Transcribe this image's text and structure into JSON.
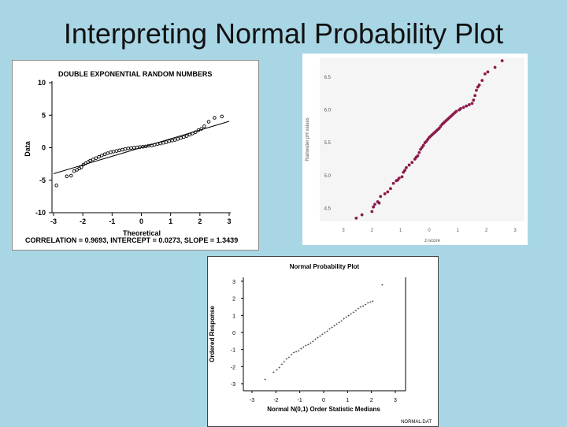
{
  "slide": {
    "title": "Interpreting Normal Probability Plot"
  },
  "chart_data": [
    {
      "type": "scatter",
      "title": "DOUBLE EXPONENTIAL RANDOM NUMBERS",
      "xlabel": "Theoretical",
      "ylabel": "Data",
      "xlim": [
        -3,
        3
      ],
      "ylim": [
        -10,
        10
      ],
      "xticks": [
        "-3",
        "-2",
        "-1",
        "0",
        "1",
        "2",
        "3"
      ],
      "yticks": [
        "10",
        "5",
        "0",
        "-5",
        "-10"
      ],
      "footer": "CORRELATION = 0.9693, INTERCEPT = 0.0273, SLOPE = 1.3439",
      "fit_line": {
        "intercept": 0.0273,
        "slope": 1.3439
      },
      "colors": {
        "marker": "#000000",
        "line": "#000000"
      },
      "x": [
        -2.9,
        -2.55,
        -2.4,
        -2.3,
        -2.2,
        -2.12,
        -2.05,
        -1.98,
        -1.9,
        -1.82,
        -1.75,
        -1.65,
        -1.55,
        -1.45,
        -1.35,
        -1.25,
        -1.15,
        -1.05,
        -0.95,
        -0.85,
        -0.75,
        -0.65,
        -0.55,
        -0.45,
        -0.35,
        -0.25,
        -0.15,
        -0.05,
        0.05,
        0.15,
        0.25,
        0.35,
        0.45,
        0.55,
        0.65,
        0.75,
        0.85,
        0.95,
        1.05,
        1.15,
        1.25,
        1.35,
        1.45,
        1.55,
        1.65,
        1.75,
        1.85,
        1.95,
        2.05,
        2.15,
        2.3,
        2.5,
        2.75
      ],
      "y": [
        -5.8,
        -4.4,
        -4.3,
        -3.6,
        -3.4,
        -3.2,
        -3.0,
        -2.6,
        -2.4,
        -2.2,
        -2.0,
        -1.8,
        -1.6,
        -1.4,
        -1.2,
        -1.0,
        -0.85,
        -0.7,
        -0.6,
        -0.5,
        -0.4,
        -0.3,
        -0.2,
        -0.1,
        -0.05,
        0.0,
        0.05,
        0.1,
        0.15,
        0.2,
        0.3,
        0.35,
        0.45,
        0.55,
        0.65,
        0.75,
        0.85,
        1.0,
        1.1,
        1.2,
        1.35,
        1.5,
        1.65,
        1.8,
        2.0,
        2.2,
        2.4,
        2.7,
        2.9,
        3.3,
        4.0,
        4.6,
        4.8
      ]
    },
    {
      "type": "scatter",
      "title": "",
      "xlabel": "z-score",
      "ylabel": "Rainwater pH values",
      "xlim": [
        -3,
        3
      ],
      "ylim": [
        4.3,
        6.8
      ],
      "xticks": [
        "3",
        "2",
        "1",
        "0",
        "1",
        "2",
        "3"
      ],
      "yticks": [
        "6.5",
        "6.0",
        "5.5",
        "5.0",
        "4.5"
      ],
      "colors": {
        "marker": "#8b1a4a",
        "plot_bg": "#f5f5f5"
      },
      "x": [
        -2.55,
        -2.35,
        -2.0,
        -1.95,
        -1.9,
        -1.8,
        -1.75,
        -1.7,
        -1.55,
        -1.45,
        -1.35,
        -1.25,
        -1.15,
        -1.1,
        -1.05,
        -0.95,
        -0.9,
        -0.85,
        -0.8,
        -0.7,
        -0.6,
        -0.5,
        -0.45,
        -0.4,
        -0.35,
        -0.3,
        -0.25,
        -0.2,
        -0.15,
        -0.1,
        -0.05,
        0.0,
        0.05,
        0.1,
        0.15,
        0.2,
        0.25,
        0.3,
        0.35,
        0.4,
        0.45,
        0.5,
        0.55,
        0.6,
        0.65,
        0.7,
        0.75,
        0.8,
        0.85,
        0.9,
        0.95,
        1.05,
        1.1,
        1.2,
        1.3,
        1.4,
        1.5,
        1.55,
        1.6,
        1.65,
        1.7,
        1.75,
        1.85,
        1.95,
        2.05,
        2.3,
        2.55
      ],
      "y": [
        4.35,
        4.4,
        4.45,
        4.52,
        4.56,
        4.6,
        4.58,
        4.68,
        4.72,
        4.75,
        4.8,
        4.88,
        4.92,
        4.93,
        4.96,
        4.98,
        5.05,
        5.08,
        5.12,
        5.16,
        5.2,
        5.25,
        5.28,
        5.3,
        5.35,
        5.4,
        5.43,
        5.46,
        5.5,
        5.52,
        5.55,
        5.58,
        5.6,
        5.62,
        5.64,
        5.66,
        5.68,
        5.7,
        5.72,
        5.75,
        5.78,
        5.8,
        5.82,
        5.84,
        5.86,
        5.88,
        5.9,
        5.92,
        5.94,
        5.96,
        5.98,
        6.0,
        6.02,
        6.04,
        6.06,
        6.08,
        6.1,
        6.15,
        6.22,
        6.3,
        6.35,
        6.38,
        6.45,
        6.55,
        6.58,
        6.65,
        6.75
      ]
    },
    {
      "type": "scatter",
      "title": "Normal Probability Plot",
      "xlabel": "Normal N(0,1) Order Statistic Medians",
      "ylabel": "Ordered Response",
      "xlim": [
        -3,
        3
      ],
      "ylim": [
        -3,
        3
      ],
      "xticks": [
        "-3",
        "-2",
        "-1",
        "0",
        "1",
        "2",
        "3"
      ],
      "yticks": [
        "3",
        "2",
        "1",
        "0",
        "-1",
        "-2",
        "-3"
      ],
      "footer": "NORMAL.DAT",
      "colors": {
        "marker": "#000000"
      },
      "x": [
        -2.45,
        -2.1,
        -1.95,
        -1.85,
        -1.75,
        -1.65,
        -1.55,
        -1.45,
        -1.35,
        -1.25,
        -1.15,
        -1.05,
        -0.95,
        -0.85,
        -0.75,
        -0.65,
        -0.55,
        -0.45,
        -0.35,
        -0.25,
        -0.15,
        -0.05,
        0.05,
        0.15,
        0.25,
        0.35,
        0.45,
        0.55,
        0.65,
        0.75,
        0.85,
        0.95,
        1.05,
        1.15,
        1.25,
        1.35,
        1.45,
        1.55,
        1.65,
        1.75,
        1.85,
        1.95,
        2.05,
        2.45
      ],
      "y": [
        -2.75,
        -2.3,
        -2.2,
        -2.05,
        -1.85,
        -1.7,
        -1.55,
        -1.45,
        -1.3,
        -1.15,
        -1.1,
        -1.05,
        -0.95,
        -0.85,
        -0.75,
        -0.7,
        -0.6,
        -0.5,
        -0.4,
        -0.3,
        -0.2,
        -0.1,
        0.0,
        0.1,
        0.2,
        0.3,
        0.4,
        0.5,
        0.6,
        0.7,
        0.8,
        0.9,
        1.0,
        1.1,
        1.2,
        1.3,
        1.4,
        1.5,
        1.55,
        1.65,
        1.75,
        1.8,
        1.85,
        2.8
      ]
    }
  ]
}
